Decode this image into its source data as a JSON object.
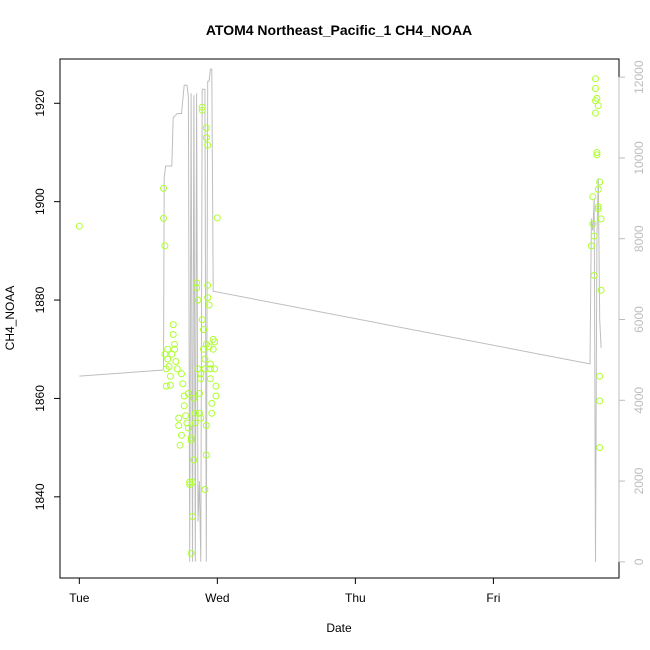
{
  "chart_data": {
    "type": "scatter",
    "title": "ATOM4 Northeast_Pacific_1 CH4_NOAA",
    "xlabel": "Date",
    "ylabel": "CH4_NOAA",
    "x_ticks": [
      "Tue",
      "Wed",
      "Thu",
      "Fri"
    ],
    "x_tick_days": [
      0,
      1,
      2,
      3
    ],
    "xlim": [
      -0.14,
      3.91
    ],
    "ylim": [
      1823.5,
      1929.0
    ],
    "y_ticks": [
      1840,
      1860,
      1880,
      1900,
      1920
    ],
    "y2lim": [
      -400,
      12450
    ],
    "y2_ticks": [
      0,
      2000,
      4000,
      6000,
      8000,
      10000,
      12000
    ],
    "grid": false,
    "legend": "none",
    "colors": {
      "points": "#adff2f",
      "line": "#bebebe",
      "axis": "#000000",
      "axis2": "#bdbdbd"
    },
    "series": [
      {
        "type": "points",
        "axis": "left",
        "points": [
          [
            0.0,
            1895.0
          ],
          [
            0.61,
            1902.7
          ],
          [
            0.61,
            1896.6
          ],
          [
            0.62,
            1891.0
          ],
          [
            0.62,
            1869.0
          ],
          [
            0.63,
            1866.0
          ],
          [
            0.63,
            1862.5
          ],
          [
            0.64,
            1870.0
          ],
          [
            0.64,
            1868.0
          ],
          [
            0.65,
            1866.5
          ],
          [
            0.66,
            1864.5
          ],
          [
            0.66,
            1862.7
          ],
          [
            0.67,
            1869.0
          ],
          [
            0.68,
            1875.0
          ],
          [
            0.68,
            1873.0
          ],
          [
            0.69,
            1871.0
          ],
          [
            0.69,
            1870.0
          ],
          [
            0.7,
            1867.5
          ],
          [
            0.71,
            1866.0
          ],
          [
            0.72,
            1856.0
          ],
          [
            0.72,
            1854.5
          ],
          [
            0.73,
            1850.5
          ],
          [
            0.74,
            1852.5
          ],
          [
            0.74,
            1865.0
          ],
          [
            0.75,
            1863.0
          ],
          [
            0.76,
            1860.5
          ],
          [
            0.76,
            1858.5
          ],
          [
            0.77,
            1856.5
          ],
          [
            0.78,
            1855.0
          ],
          [
            0.79,
            1854.0
          ],
          [
            0.79,
            1861.0
          ],
          [
            0.8,
            1843.0
          ],
          [
            0.8,
            1842.5
          ],
          [
            0.81,
            1852.0
          ],
          [
            0.81,
            1851.5
          ],
          [
            0.81,
            1828.5
          ],
          [
            0.82,
            1836.0
          ],
          [
            0.82,
            1843.0
          ],
          [
            0.83,
            1847.5
          ],
          [
            0.83,
            1860.0
          ],
          [
            0.84,
            1857.0
          ],
          [
            0.84,
            1855.0
          ],
          [
            0.85,
            1883.5
          ],
          [
            0.85,
            1882.5
          ],
          [
            0.86,
            1880.0
          ],
          [
            0.86,
            1866.0
          ],
          [
            0.87,
            1861.0
          ],
          [
            0.87,
            1857.0
          ],
          [
            0.88,
            1865.0
          ],
          [
            0.88,
            1864.0
          ],
          [
            0.88,
            1856.0
          ],
          [
            0.89,
            1919.2
          ],
          [
            0.89,
            1918.6
          ],
          [
            0.89,
            1876.0
          ],
          [
            0.9,
            1874.0
          ],
          [
            0.9,
            1870.0
          ],
          [
            0.91,
            1868.0
          ],
          [
            0.91,
            1866.0
          ],
          [
            0.92,
            1871.0
          ],
          [
            0.92,
            1915.0
          ],
          [
            0.92,
            1913.0
          ],
          [
            0.93,
            1911.5
          ],
          [
            0.93,
            1880.5
          ],
          [
            0.93,
            1883.0
          ],
          [
            0.94,
            1879.0
          ],
          [
            0.94,
            1870.5
          ],
          [
            0.95,
            1867.0
          ],
          [
            0.95,
            1866.0
          ],
          [
            0.95,
            1864.0
          ],
          [
            0.96,
            1859.0
          ],
          [
            0.96,
            1857.0
          ],
          [
            0.97,
            1872.0
          ],
          [
            0.97,
            1870.0
          ],
          [
            0.98,
            1871.5
          ],
          [
            0.98,
            1866.0
          ],
          [
            0.99,
            1862.5
          ],
          [
            0.99,
            1860.5
          ],
          [
            1.0,
            1896.7
          ],
          [
            0.92,
            1848.5
          ],
          [
            0.91,
            1841.5
          ],
          [
            0.92,
            1854.5
          ],
          [
            3.71,
            1891.0
          ],
          [
            3.72,
            1895.5
          ],
          [
            3.72,
            1901.0
          ],
          [
            3.73,
            1893.0
          ],
          [
            3.73,
            1885.0
          ],
          [
            3.74,
            1925.0
          ],
          [
            3.74,
            1923.0
          ],
          [
            3.74,
            1920.5
          ],
          [
            3.74,
            1918.0
          ],
          [
            3.75,
            1921.0
          ],
          [
            3.75,
            1910.0
          ],
          [
            3.75,
            1909.5
          ],
          [
            3.76,
            1902.5
          ],
          [
            3.76,
            1899.0
          ],
          [
            3.76,
            1898.5
          ],
          [
            3.77,
            1904.0
          ],
          [
            3.77,
            1864.5
          ],
          [
            3.77,
            1859.5
          ],
          [
            3.77,
            1850.0
          ],
          [
            3.78,
            1896.5
          ],
          [
            3.78,
            1882.0
          ],
          [
            3.76,
            1919.5
          ]
        ]
      },
      {
        "type": "line",
        "axis": "right",
        "points": [
          [
            0.0,
            4600
          ],
          [
            0.61,
            4750
          ],
          [
            0.615,
            9500
          ],
          [
            0.625,
            9800
          ],
          [
            0.64,
            9800
          ],
          [
            0.67,
            9800
          ],
          [
            0.68,
            11000
          ],
          [
            0.71,
            11100
          ],
          [
            0.74,
            11100
          ],
          [
            0.76,
            11800
          ],
          [
            0.78,
            11800
          ],
          [
            0.79,
            11500
          ],
          [
            0.8,
            0
          ],
          [
            0.81,
            11600
          ],
          [
            0.82,
            0
          ],
          [
            0.83,
            11550
          ],
          [
            0.84,
            0
          ],
          [
            0.85,
            11600
          ],
          [
            0.86,
            1000
          ],
          [
            0.87,
            2000
          ],
          [
            0.88,
            0
          ],
          [
            0.89,
            11700
          ],
          [
            0.91,
            11700
          ],
          [
            0.92,
            0
          ],
          [
            0.93,
            11900
          ],
          [
            0.94,
            11900
          ],
          [
            0.95,
            12200
          ],
          [
            0.96,
            12200
          ],
          [
            0.97,
            6700
          ],
          [
            0.0001,
            4600
          ],
          [
            3.7,
            4900
          ],
          [
            3.71,
            8500
          ],
          [
            3.72,
            8200
          ],
          [
            3.73,
            9000
          ],
          [
            3.74,
            0
          ],
          [
            3.75,
            8000
          ],
          [
            3.76,
            9500
          ],
          [
            3.77,
            6000
          ],
          [
            3.78,
            5300
          ]
        ]
      }
    ]
  }
}
